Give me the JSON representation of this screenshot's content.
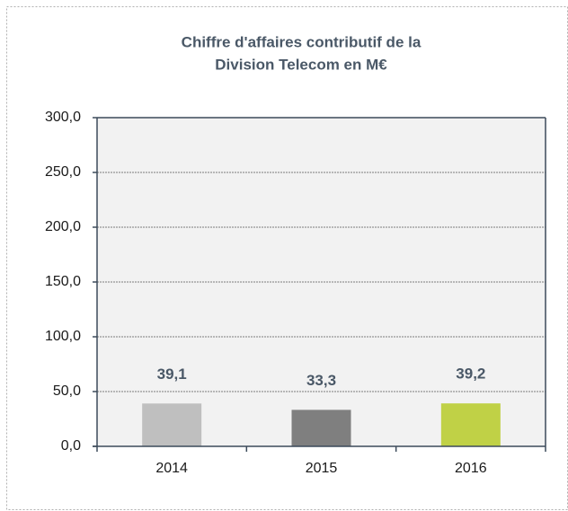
{
  "chart_data": {
    "type": "bar",
    "title": [
      "Chiffre d'affaires contributif de la",
      "Division Telecom en M€"
    ],
    "categories": [
      "2014",
      "2015",
      "2016"
    ],
    "values": [
      39.1,
      33.3,
      39.2
    ],
    "value_labels": [
      "39,1",
      "33,3",
      "39,2"
    ],
    "colors": [
      "#bfbfbf",
      "#7f7f7f",
      "#c0d146"
    ],
    "ylim": [
      0,
      300
    ],
    "yticks": [
      {
        "value": 0,
        "label": "0,0"
      },
      {
        "value": 50,
        "label": "50,0"
      },
      {
        "value": 100,
        "label": "100,0"
      },
      {
        "value": 150,
        "label": "150,0"
      },
      {
        "value": 200,
        "label": "200,0"
      },
      {
        "value": 250,
        "label": "250,0"
      },
      {
        "value": 300,
        "label": "300,0"
      }
    ],
    "grid": true
  }
}
